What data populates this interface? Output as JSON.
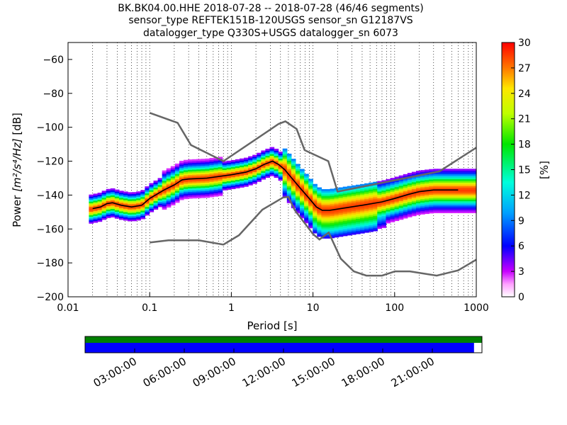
{
  "chart_data": {
    "type": "heatmap",
    "title_lines": [
      "BK.BK04.00.HHE   2018-07-28 -- 2018-07-28  (46/46 segments)",
      "sensor_type REFTEK151B-120USGS sensor_sn G12187VS",
      "datalogger_type Q330S+USGS datalogger_sn 6073"
    ],
    "xlabel": "Period [s]",
    "ylabel_prefix": "Power ",
    "ylabel_units": "[m²/s⁴/Hz]",
    "ylabel_suffix": " [dB]",
    "x_scale": "log",
    "xlim": [
      0.01,
      1000
    ],
    "ylim": [
      -200,
      -50
    ],
    "x_ticks": [
      0.01,
      0.1,
      1,
      10,
      100,
      1000
    ],
    "x_tick_labels": [
      "0.01",
      "0.1",
      "1",
      "10",
      "100",
      "1000"
    ],
    "y_ticks": [
      -200,
      -180,
      -160,
      -140,
      -120,
      -100,
      -80,
      -60
    ],
    "y_tick_labels": [
      "−200",
      "−180",
      "−160",
      "−140",
      "−120",
      "−100",
      "−80",
      "−60"
    ],
    "grid": "dotted vertical lines at log sub-decades",
    "noise_model_high": {
      "name": "",
      "color": "#666666",
      "points": [
        [
          0.1,
          -91.5
        ],
        [
          0.22,
          -97.4
        ],
        [
          0.32,
          -110.5
        ],
        [
          0.8,
          -120
        ],
        [
          3.8,
          -98
        ],
        [
          4.6,
          -96.5
        ],
        [
          6.3,
          -101
        ],
        [
          7.9,
          -113.5
        ],
        [
          15.4,
          -120
        ],
        [
          20,
          -138
        ],
        [
          354,
          -126
        ],
        [
          1000,
          -112
        ]
      ]
    },
    "noise_model_low": {
      "name": "",
      "color": "#666666",
      "points": [
        [
          0.1,
          -168
        ],
        [
          0.17,
          -166.7
        ],
        [
          0.4,
          -166.7
        ],
        [
          0.8,
          -169.2
        ],
        [
          1.24,
          -163.7
        ],
        [
          2.4,
          -148.6
        ],
        [
          4.3,
          -141.4
        ],
        [
          5,
          -141.1
        ],
        [
          6,
          -149
        ],
        [
          10,
          -163
        ],
        [
          12,
          -166.2
        ],
        [
          15.6,
          -162.1
        ],
        [
          21.9,
          -177.5
        ],
        [
          31.6,
          -185
        ],
        [
          45,
          -187.5
        ],
        [
          70,
          -187.5
        ],
        [
          101,
          -185
        ],
        [
          154,
          -185
        ],
        [
          328,
          -187.5
        ],
        [
          600,
          -184.4
        ],
        [
          1000,
          -178.1
        ]
      ]
    },
    "mode_curve": {
      "name": "",
      "color": "#000000",
      "points": [
        [
          0.02,
          -148
        ],
        [
          0.025,
          -147
        ],
        [
          0.03,
          -145
        ],
        [
          0.035,
          -144.5
        ],
        [
          0.045,
          -146
        ],
        [
          0.06,
          -147
        ],
        [
          0.08,
          -146
        ],
        [
          0.1,
          -142
        ],
        [
          0.15,
          -137
        ],
        [
          0.2,
          -134
        ],
        [
          0.25,
          -131
        ],
        [
          0.3,
          -130.5
        ],
        [
          0.5,
          -130
        ],
        [
          1,
          -128
        ],
        [
          1.5,
          -126.5
        ],
        [
          2,
          -124.5
        ],
        [
          2.5,
          -122
        ],
        [
          3.2,
          -120
        ],
        [
          3.8,
          -122
        ],
        [
          4.5,
          -125
        ],
        [
          5.5,
          -130
        ],
        [
          7,
          -136
        ],
        [
          9,
          -142
        ],
        [
          11,
          -147
        ],
        [
          13,
          -149
        ],
        [
          16,
          -149
        ],
        [
          25,
          -147.5
        ],
        [
          40,
          -146
        ],
        [
          70,
          -144
        ],
        [
          100,
          -142
        ],
        [
          150,
          -139.5
        ],
        [
          200,
          -138
        ],
        [
          300,
          -137
        ],
        [
          600,
          -137
        ]
      ]
    },
    "colorbar": {
      "label": "[%]",
      "min": 0,
      "max": 30,
      "ticks": [
        0,
        3,
        6,
        9,
        12,
        15,
        18,
        21,
        24,
        27,
        30
      ],
      "tick_labels": [
        "0",
        "3",
        "6",
        "9",
        "12",
        "15",
        "18",
        "21",
        "24",
        "27",
        "30"
      ],
      "colormap": "pqlx"
    },
    "coverage_bar": {
      "data_color": "#0000ff",
      "gap_color": "#ffffff",
      "top_color": "#008000",
      "data_fraction": 0.98,
      "time_labels": [
        "03:00:00",
        "06:00:00",
        "09:00:00",
        "12:00:00",
        "15:00:00",
        "18:00:00",
        "21:00:00"
      ],
      "time_fractions": [
        0.125,
        0.25,
        0.375,
        0.5,
        0.625,
        0.75,
        0.875
      ]
    }
  }
}
